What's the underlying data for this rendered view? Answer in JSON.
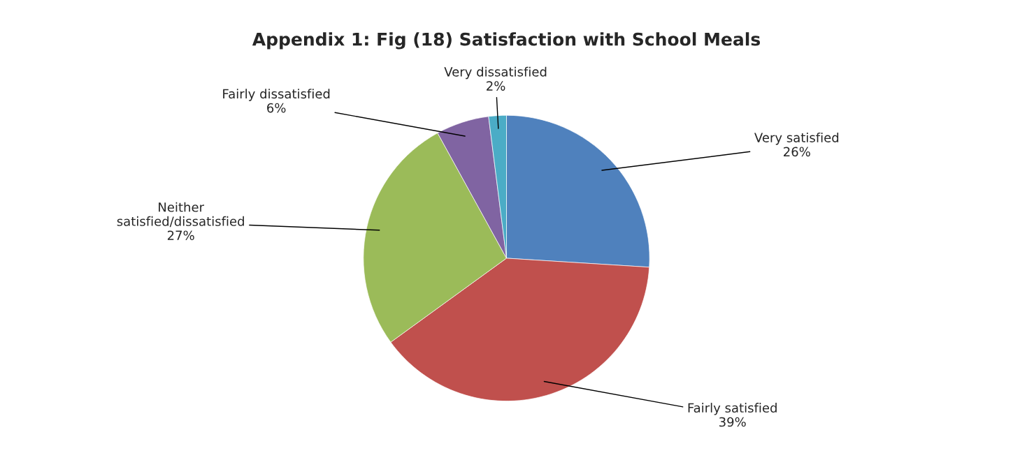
{
  "chart_data": {
    "type": "pie",
    "title": "Appendix 1: Fig (18) Satisfaction with School Meals",
    "categories": [
      "Very satisfied",
      "Fairly satisfied",
      "Neither\nsatisfied/dissatisfied",
      "Fairly dissatisfied",
      "Very dissatisfied"
    ],
    "values": [
      26,
      39,
      27,
      6,
      2
    ],
    "colors": [
      "#4f81bd",
      "#c0504d",
      "#9bbb59",
      "#8064a2",
      "#4bacc6"
    ],
    "value_labels": [
      "26%",
      "39%",
      "27%",
      "6%",
      "2%"
    ],
    "legend": false
  }
}
